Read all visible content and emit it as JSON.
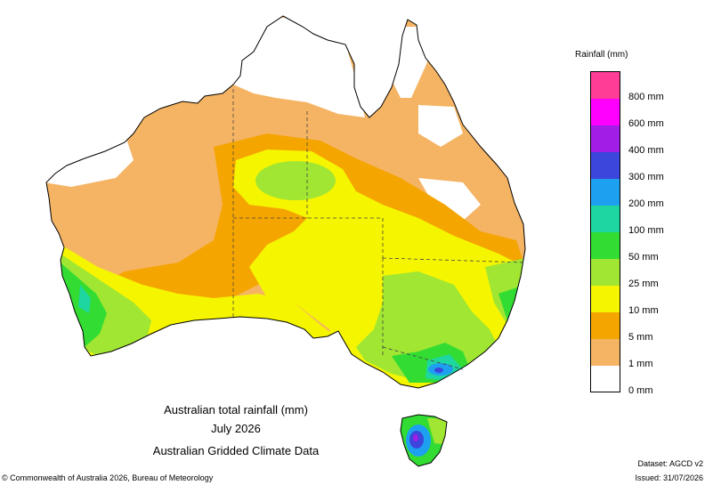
{
  "map": {
    "caption_title": "Australian total rainfall (mm)",
    "caption_period": "July 2026",
    "caption_source": "Australian Gridded Climate Data"
  },
  "legend": {
    "title": "Rainfall (mm)",
    "bins": [
      {
        "label": "800 mm",
        "color": "#ff3c96"
      },
      {
        "label": "600 mm",
        "color": "#ff00ff"
      },
      {
        "label": "400 mm",
        "color": "#a01ee6"
      },
      {
        "label": "300 mm",
        "color": "#3c46dc"
      },
      {
        "label": "200 mm",
        "color": "#1ea0f0"
      },
      {
        "label": "100 mm",
        "color": "#1ed7a0"
      },
      {
        "label": "50 mm",
        "color": "#32dc32"
      },
      {
        "label": "25 mm",
        "color": "#a0e632"
      },
      {
        "label": "10 mm",
        "color": "#f5f500"
      },
      {
        "label": "5 mm",
        "color": "#f5a500"
      },
      {
        "label": "1 mm",
        "color": "#f5b464"
      },
      {
        "label": "0 mm",
        "color": "#ffffff"
      }
    ]
  },
  "footer": {
    "copyright": "© Commonwealth of Australia 2026, Bureau of Meteorology",
    "dataset": "Dataset: AGCD v2",
    "issued": "Issued: 31/07/2026"
  }
}
